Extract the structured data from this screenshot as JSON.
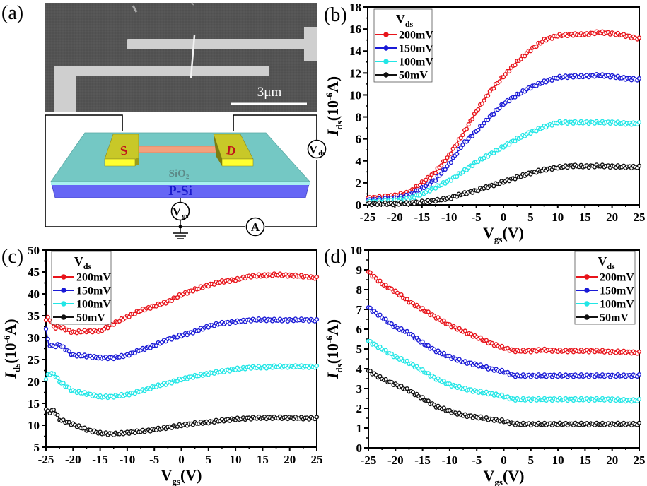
{
  "panels": {
    "a": {
      "label": "(a)",
      "scale_bar": "3μm",
      "schematic": {
        "source": "S",
        "drain": "D",
        "oxide": "SiO₂",
        "substrate": "P-Si",
        "vds_meter": "V",
        "vds_sub": "ds",
        "vgs_meter": "V",
        "vgs_sub": "gs",
        "ammeter": "A"
      }
    }
  },
  "chart_data": [
    {
      "type": "line",
      "panel": "(b)",
      "xlabel": "V_gs(V)",
      "ylabel": "I_ds(10^-6 A)",
      "xlim": [
        -25,
        25
      ],
      "ylim": [
        0,
        18
      ],
      "xticks": [
        -25,
        -20,
        -15,
        -10,
        -5,
        0,
        5,
        10,
        15,
        20,
        25
      ],
      "yticks": [
        0,
        2,
        4,
        6,
        8,
        10,
        12,
        14,
        16,
        18
      ],
      "legend": {
        "title": "V_ds",
        "placement": "top-left"
      },
      "x": [
        -25,
        -22.5,
        -20,
        -17.5,
        -15,
        -12.5,
        -10,
        -7.5,
        -5,
        -2.5,
        0,
        2.5,
        5,
        7.5,
        10,
        12.5,
        15,
        17.5,
        20,
        22.5,
        25
      ],
      "series": [
        {
          "name": "200mV",
          "color": "#e8141b",
          "values": [
            0.6,
            0.7,
            0.85,
            1.1,
            2.0,
            3.0,
            4.5,
            6.4,
            8.5,
            10.3,
            11.7,
            13.0,
            14.1,
            15.0,
            15.4,
            15.5,
            15.5,
            15.7,
            15.6,
            15.4,
            15.1
          ]
        },
        {
          "name": "150mV",
          "color": "#1a1ad6",
          "values": [
            0.4,
            0.5,
            0.6,
            0.85,
            1.5,
            2.3,
            3.7,
            5.5,
            6.7,
            8.0,
            9.2,
            10.0,
            10.7,
            11.2,
            11.6,
            11.7,
            11.7,
            11.8,
            11.7,
            11.5,
            11.4
          ]
        },
        {
          "name": "100mV",
          "color": "#22e6e6",
          "values": [
            0.25,
            0.3,
            0.4,
            0.55,
            1.0,
            1.6,
            2.2,
            3.0,
            3.9,
            4.6,
            5.3,
            6.0,
            6.6,
            7.1,
            7.5,
            7.5,
            7.5,
            7.5,
            7.5,
            7.4,
            7.4
          ]
        },
        {
          "name": "50mV",
          "color": "#111111",
          "values": [
            0.1,
            0.1,
            0.1,
            0.15,
            0.25,
            0.4,
            0.6,
            1.0,
            1.3,
            1.7,
            2.1,
            2.5,
            2.9,
            3.2,
            3.4,
            3.55,
            3.5,
            3.55,
            3.5,
            3.45,
            3.45
          ]
        }
      ]
    },
    {
      "type": "line",
      "panel": "(c)",
      "xlabel": "V_gs(V)",
      "ylabel": "I_ds(10^-6 A)",
      "xlim": [
        -25,
        25
      ],
      "ylim": [
        5,
        50
      ],
      "xticks": [
        -25,
        -20,
        -15,
        -10,
        -5,
        0,
        5,
        10,
        15,
        20,
        25
      ],
      "yticks": [
        5,
        10,
        15,
        20,
        25,
        30,
        35,
        40,
        45,
        50
      ],
      "legend": {
        "title": "V_ds",
        "placement": "top-left"
      },
      "x": [
        -25,
        -24.5,
        -23.5,
        -22.5,
        -20,
        -17.5,
        -15,
        -12.5,
        -10,
        -7.5,
        -5,
        -2.5,
        0,
        2.5,
        5,
        7.5,
        10,
        12.5,
        15,
        17.5,
        20,
        22.5,
        25
      ],
      "series": [
        {
          "name": "200mV",
          "color": "#e8141b",
          "values": [
            34.0,
            34.7,
            32.3,
            32.5,
            31.2,
            31.5,
            31.5,
            33.2,
            34.8,
            36.2,
            37.2,
            38.2,
            39.8,
            41.0,
            42.0,
            42.8,
            43.2,
            44.0,
            44.2,
            44.4,
            44.2,
            44.0,
            43.6
          ]
        },
        {
          "name": "150mV",
          "color": "#1a1ad6",
          "values": [
            32.0,
            28.5,
            28.0,
            28.4,
            26.0,
            25.8,
            25.4,
            25.4,
            26.0,
            27.2,
            28.2,
            29.6,
            30.5,
            31.4,
            32.6,
            33.3,
            33.6,
            34.0,
            34.1,
            34.0,
            34.0,
            34.1,
            33.9
          ]
        },
        {
          "name": "100mV",
          "color": "#22e6e6",
          "values": [
            20.5,
            21.8,
            21.7,
            20.0,
            17.8,
            17.2,
            16.5,
            16.6,
            17.0,
            17.8,
            18.8,
            19.6,
            20.5,
            21.2,
            21.8,
            22.3,
            22.8,
            23.2,
            23.2,
            23.4,
            23.4,
            23.4,
            23.3
          ]
        },
        {
          "name": "50mV",
          "color": "#111111",
          "values": [
            13.6,
            12.9,
            13.5,
            11.3,
            10.2,
            9.0,
            8.2,
            8.0,
            8.3,
            8.6,
            9.0,
            9.5,
            10.0,
            10.4,
            10.7,
            11.1,
            11.4,
            11.6,
            11.7,
            11.7,
            11.7,
            11.6,
            11.6
          ]
        }
      ]
    },
    {
      "type": "line",
      "panel": "(d)",
      "xlabel": "V_gs(V)",
      "ylabel": "I_ds(10^-6 A)",
      "xlim": [
        -25,
        25
      ],
      "ylim": [
        0,
        10
      ],
      "xticks": [
        -25,
        -20,
        -15,
        -10,
        -5,
        0,
        5,
        10,
        15,
        20,
        25
      ],
      "yticks": [
        0,
        1,
        2,
        3,
        4,
        5,
        6,
        7,
        8,
        9,
        10
      ],
      "legend": {
        "title": "V_ds",
        "placement": "top-right"
      },
      "x": [
        -25,
        -22.5,
        -20,
        -17.5,
        -15,
        -12.5,
        -10,
        -7.5,
        -5,
        -2.5,
        0,
        2,
        5,
        7.5,
        10,
        12.5,
        15,
        17.5,
        20,
        22.5,
        25
      ],
      "series": [
        {
          "name": "200mV",
          "color": "#e8141b",
          "values": [
            8.9,
            8.3,
            7.9,
            7.4,
            7.0,
            6.6,
            6.2,
            5.9,
            5.6,
            5.3,
            5.05,
            4.9,
            4.9,
            4.95,
            4.9,
            4.9,
            4.9,
            4.9,
            4.85,
            4.85,
            4.8
          ]
        },
        {
          "name": "150mV",
          "color": "#1a1ad6",
          "values": [
            7.1,
            6.6,
            6.1,
            5.8,
            5.3,
            4.9,
            4.6,
            4.35,
            4.2,
            4.0,
            3.85,
            3.65,
            3.65,
            3.65,
            3.65,
            3.65,
            3.65,
            3.65,
            3.65,
            3.65,
            3.65
          ]
        },
        {
          "name": "100mV",
          "color": "#22e6e6",
          "values": [
            5.4,
            5.0,
            4.6,
            4.3,
            3.9,
            3.5,
            3.2,
            3.0,
            2.85,
            2.75,
            2.6,
            2.45,
            2.45,
            2.45,
            2.45,
            2.45,
            2.45,
            2.45,
            2.45,
            2.4,
            2.4
          ]
        },
        {
          "name": "50mV",
          "color": "#111111",
          "values": [
            3.9,
            3.5,
            3.2,
            2.9,
            2.5,
            2.1,
            1.85,
            1.65,
            1.55,
            1.45,
            1.35,
            1.2,
            1.2,
            1.2,
            1.2,
            1.2,
            1.2,
            1.2,
            1.2,
            1.2,
            1.2
          ]
        }
      ]
    }
  ]
}
